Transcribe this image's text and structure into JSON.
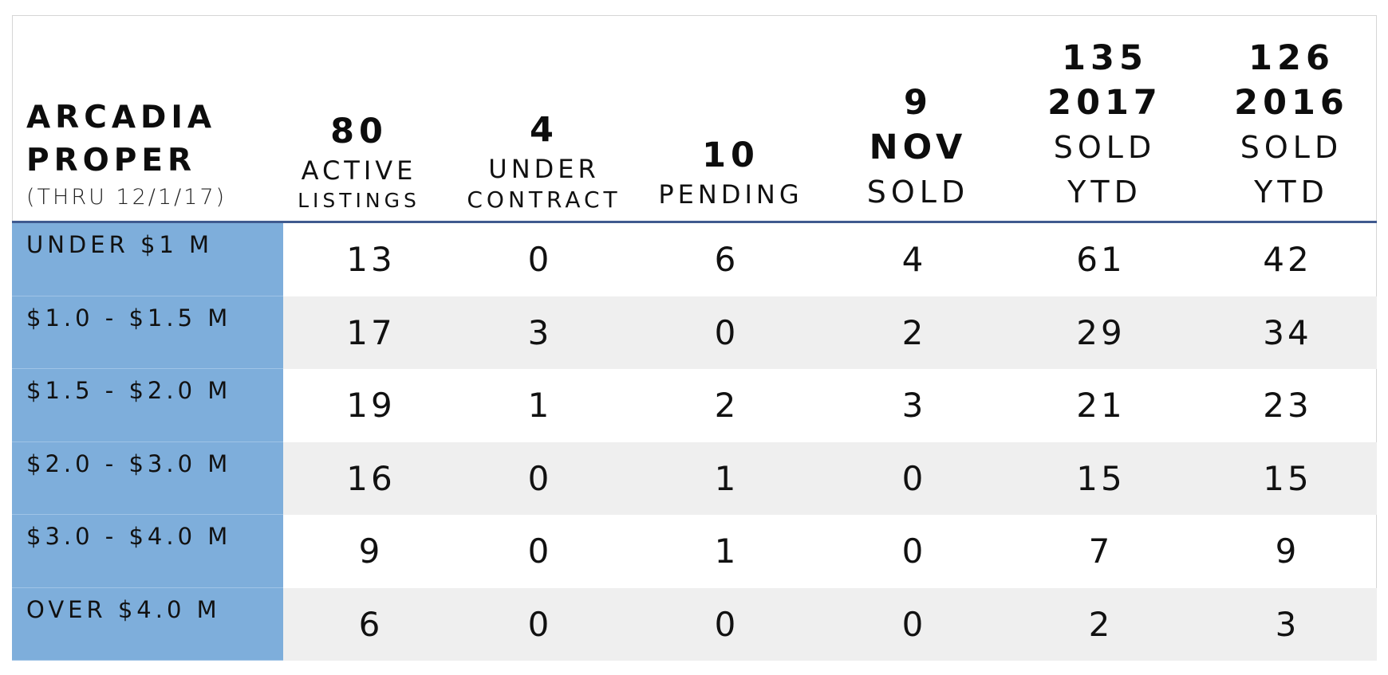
{
  "table": {
    "title": {
      "line1": "ARCADIA",
      "line2": "PROPER",
      "subtitle": "(THRU 12/1/17)"
    },
    "columns": [
      {
        "number": "80",
        "label_line1": "ACTIVE",
        "label_line2": "LISTINGS"
      },
      {
        "number": "4",
        "label_line1": "UNDER",
        "label_line2": "CONTRACT"
      },
      {
        "number": "10",
        "label_line1": "PENDING"
      },
      {
        "number": "9",
        "label_line1": "NOV",
        "label_line2": "SOLD"
      },
      {
        "number": "135",
        "label_line1": "2017",
        "label_line2": "SOLD",
        "label_line3": "YTD"
      },
      {
        "number": "126",
        "label_line1": "2016",
        "label_line2": "SOLD",
        "label_line3": "YTD"
      }
    ],
    "rows": [
      {
        "label": "UNDER $1 M",
        "values": [
          "13",
          "0",
          "6",
          "4",
          "61",
          "42"
        ]
      },
      {
        "label": "$1.0 - $1.5 M",
        "values": [
          "17",
          "3",
          "0",
          "2",
          "29",
          "34"
        ]
      },
      {
        "label": "$1.5 - $2.0 M",
        "values": [
          "19",
          "1",
          "2",
          "3",
          "21",
          "23"
        ]
      },
      {
        "label": "$2.0 - $3.0 M",
        "values": [
          "16",
          "0",
          "1",
          "0",
          "15",
          "15"
        ]
      },
      {
        "label": "$3.0 - $4.0 M",
        "values": [
          "9",
          "0",
          "1",
          "0",
          "7",
          "9"
        ]
      },
      {
        "label": "OVER $4.0 M",
        "values": [
          "6",
          "0",
          "0",
          "0",
          "2",
          "3"
        ]
      }
    ],
    "colors": {
      "row_label_bg": "#7eaedb",
      "alt_row_bg": "#efefef",
      "header_rule": "#3f5a8f"
    }
  }
}
